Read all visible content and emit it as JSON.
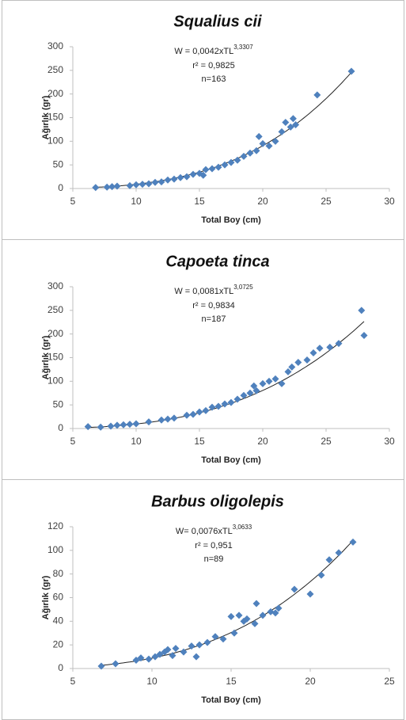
{
  "chart_data": [
    {
      "type": "scatter",
      "title": "Squalius cii",
      "equation": "W = 0,0042xTL",
      "equation_exponent": "3,3307",
      "r_squared": "r² = 0,9825",
      "n": "n=163",
      "trendline": {
        "a": 0.0042,
        "b": 3.3307
      },
      "x_label": "Total Boy (cm)",
      "y_label": "Ağırlık (gr)",
      "color": "#4f81bd",
      "x": [
        6.8,
        7.7,
        8.1,
        8.5,
        9.5,
        10,
        10.5,
        11,
        11.5,
        12,
        12.5,
        13,
        13.5,
        14,
        14.5,
        15,
        15.3,
        15.5,
        16,
        16.5,
        17,
        17.5,
        18,
        18.5,
        19,
        19.5,
        19.7,
        20,
        20.5,
        21,
        21.5,
        21.8,
        22.2,
        22.4,
        22.6,
        24.3,
        27
      ],
      "values": [
        2,
        3,
        4,
        5,
        6,
        8,
        9,
        10,
        13,
        14,
        18,
        20,
        23,
        25,
        30,
        32,
        28,
        40,
        42,
        45,
        50,
        55,
        60,
        68,
        75,
        80,
        110,
        95,
        90,
        100,
        120,
        140,
        130,
        148,
        135,
        198,
        248
      ],
      "xlim": [
        5,
        30
      ],
      "xticks": [
        5,
        10,
        15,
        20,
        25,
        30
      ],
      "ylim": [
        0,
        300
      ],
      "yticks": [
        0,
        50,
        100,
        150,
        200,
        250,
        300
      ]
    },
    {
      "type": "scatter",
      "title": "Capoeta tinca",
      "equation": "W = 0,0081xTL",
      "equation_exponent": "3,0725",
      "r_squared": "r² = 0,9834",
      "n": "n=187",
      "trendline": {
        "a": 0.0081,
        "b": 3.0725
      },
      "x_label": "Total Boy (cm)",
      "y_label": "Ağırlık (gr)",
      "color": "#4f81bd",
      "x": [
        6.2,
        7.2,
        8,
        8.5,
        9,
        9.5,
        10,
        11,
        12,
        12.5,
        13,
        14,
        14.5,
        15,
        15.5,
        16,
        16.5,
        17,
        17.5,
        18,
        18.5,
        19,
        19.3,
        19.5,
        20,
        20.5,
        21,
        21.5,
        22,
        22.3,
        22.8,
        23.5,
        24,
        24.5,
        25.3,
        26,
        27.8,
        28
      ],
      "values": [
        4,
        3,
        5,
        7,
        8,
        9,
        10,
        14,
        18,
        20,
        22,
        28,
        30,
        35,
        38,
        45,
        47,
        52,
        55,
        62,
        70,
        75,
        90,
        80,
        95,
        100,
        105,
        95,
        120,
        130,
        140,
        145,
        160,
        170,
        172,
        180,
        250,
        197
      ],
      "xlim": [
        5,
        30
      ],
      "xticks": [
        5,
        10,
        15,
        20,
        25,
        30
      ],
      "ylim": [
        0,
        300
      ],
      "yticks": [
        0,
        50,
        100,
        150,
        200,
        250,
        300
      ]
    },
    {
      "type": "scatter",
      "title": "Barbus oligolepis",
      "equation": "W= 0,0076xTL",
      "equation_exponent": "3,0633",
      "r_squared": "r² = 0,951",
      "n": "n=89",
      "trendline": {
        "a": 0.0076,
        "b": 3.0633
      },
      "x_label": "Total Boy (cm)",
      "y_label": "Ağırlık (gr)",
      "color": "#4f81bd",
      "x": [
        6.8,
        7.7,
        9,
        9.3,
        9.8,
        10.2,
        10.5,
        10.8,
        11,
        11.3,
        11.5,
        12,
        12.5,
        12.8,
        13,
        13.5,
        14,
        14.5,
        15,
        15.2,
        15.5,
        15.8,
        16,
        16.5,
        16.6,
        17,
        17.5,
        17.8,
        18,
        19,
        20,
        20.7,
        21.2,
        21.8,
        22.7
      ],
      "values": [
        2,
        4,
        7,
        9,
        8,
        10,
        12,
        14,
        16,
        11,
        17,
        14,
        19,
        10,
        20,
        22,
        27,
        25,
        44,
        30,
        45,
        40,
        42,
        38,
        55,
        45,
        48,
        47,
        51,
        67,
        63,
        79,
        92,
        98,
        107
      ],
      "xlim": [
        5,
        25
      ],
      "xticks": [
        5,
        10,
        15,
        20,
        25
      ],
      "ylim": [
        0,
        120
      ],
      "yticks": [
        0,
        20,
        40,
        60,
        80,
        100,
        120
      ]
    }
  ]
}
